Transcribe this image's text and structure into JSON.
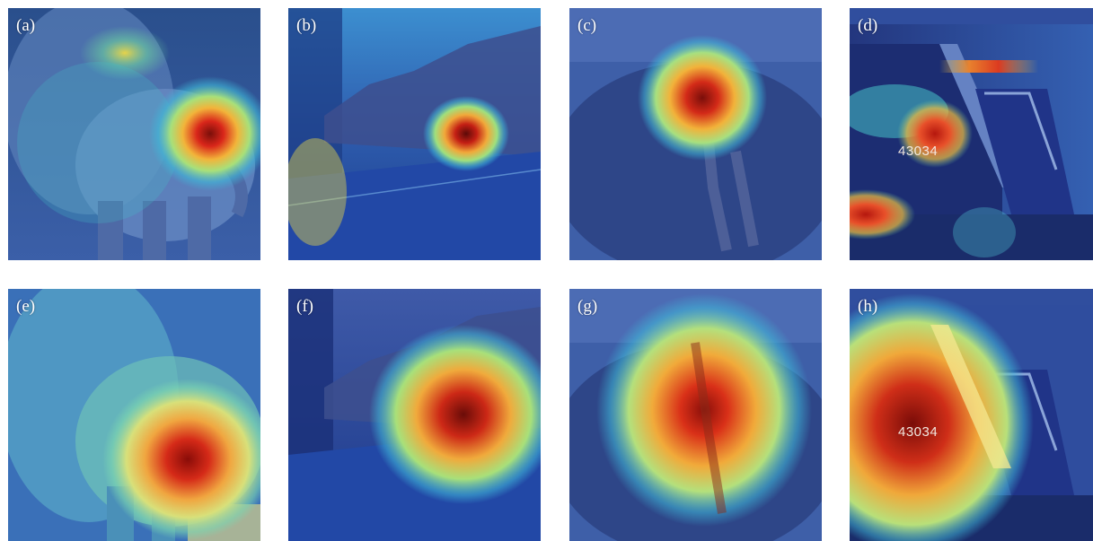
{
  "figure": {
    "panels": [
      {
        "id": "a",
        "label": "(a)",
        "scene": "elephants",
        "heatmap": "focused"
      },
      {
        "id": "b",
        "label": "(b)",
        "scene": "road",
        "heatmap": "focused"
      },
      {
        "id": "c",
        "label": "(c)",
        "scene": "giraffe",
        "heatmap": "focused"
      },
      {
        "id": "d",
        "label": "(d)",
        "scene": "train",
        "heatmap": "focused",
        "train_number": "43034"
      },
      {
        "id": "e",
        "label": "(e)",
        "scene": "elephants",
        "heatmap": "broad"
      },
      {
        "id": "f",
        "label": "(f)",
        "scene": "road",
        "heatmap": "broad"
      },
      {
        "id": "g",
        "label": "(g)",
        "scene": "giraffe",
        "heatmap": "broad"
      },
      {
        "id": "h",
        "label": "(h)",
        "scene": "train",
        "heatmap": "broad",
        "train_number": "43034"
      }
    ]
  }
}
